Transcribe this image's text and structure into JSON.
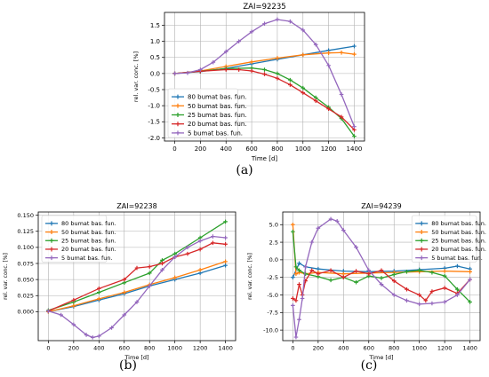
{
  "captions": {
    "a": "(a)",
    "b": "(b)",
    "c": "(c)"
  },
  "chart_data": [
    {
      "id": "a",
      "type": "line",
      "title": "ZAI=92235",
      "xlabel": "Time [d]",
      "ylabel": "rel. var. conc. [%]",
      "xlim": [
        -80,
        1480
      ],
      "ylim": [
        -2.1,
        1.9
      ],
      "xticks": [
        "0",
        "200",
        "400",
        "600",
        "800",
        "1000",
        "1200",
        "1400"
      ],
      "yticks": [
        "-2.0",
        "-1.5",
        "-1.0",
        "-0.5",
        "0.0",
        "0.5",
        "1.0",
        "1.5"
      ],
      "grid": true,
      "legend_position": "lower-left",
      "series": [
        {
          "name": "80 bumat bas. fun.",
          "color": "#1f77b4",
          "marker": "plus",
          "points": [
            [
              0,
              0
            ],
            [
              200,
              0.06
            ],
            [
              400,
              0.16
            ],
            [
              600,
              0.3
            ],
            [
              800,
              0.44
            ],
            [
              1000,
              0.58
            ],
            [
              1200,
              0.72
            ],
            [
              1400,
              0.85
            ]
          ]
        },
        {
          "name": "50 bumat bas. fun.",
          "color": "#ff7f0e",
          "marker": "plus",
          "points": [
            [
              0,
              0
            ],
            [
              200,
              0.08
            ],
            [
              400,
              0.22
            ],
            [
              600,
              0.36
            ],
            [
              800,
              0.48
            ],
            [
              1000,
              0.58
            ],
            [
              1200,
              0.64
            ],
            [
              1300,
              0.65
            ],
            [
              1400,
              0.6
            ]
          ]
        },
        {
          "name": "25 bumat bas. fun.",
          "color": "#2ca02c",
          "marker": "plus",
          "points": [
            [
              0,
              0
            ],
            [
              200,
              0.07
            ],
            [
              400,
              0.15
            ],
            [
              600,
              0.17
            ],
            [
              700,
              0.12
            ],
            [
              800,
              0.0
            ],
            [
              900,
              -0.2
            ],
            [
              1000,
              -0.45
            ],
            [
              1100,
              -0.75
            ],
            [
              1200,
              -1.05
            ],
            [
              1300,
              -1.4
            ],
            [
              1400,
              -1.95
            ]
          ]
        },
        {
          "name": "20 bumat bas. fun.",
          "color": "#d62728",
          "marker": "plus",
          "points": [
            [
              0,
              0
            ],
            [
              200,
              0.07
            ],
            [
              400,
              0.12
            ],
            [
              500,
              0.12
            ],
            [
              600,
              0.08
            ],
            [
              700,
              -0.02
            ],
            [
              800,
              -0.15
            ],
            [
              900,
              -0.35
            ],
            [
              1000,
              -0.6
            ],
            [
              1100,
              -0.85
            ],
            [
              1200,
              -1.1
            ],
            [
              1300,
              -1.35
            ],
            [
              1400,
              -1.75
            ]
          ]
        },
        {
          "name": "5 bumat bas. fun.",
          "color": "#9467bd",
          "marker": "plus",
          "points": [
            [
              0,
              0
            ],
            [
              100,
              0.02
            ],
            [
              200,
              0.12
            ],
            [
              300,
              0.35
            ],
            [
              400,
              0.68
            ],
            [
              500,
              1.0
            ],
            [
              600,
              1.3
            ],
            [
              700,
              1.55
            ],
            [
              800,
              1.68
            ],
            [
              900,
              1.62
            ],
            [
              1000,
              1.35
            ],
            [
              1100,
              0.9
            ],
            [
              1200,
              0.25
            ],
            [
              1300,
              -0.65
            ],
            [
              1400,
              -1.65
            ]
          ]
        }
      ]
    },
    {
      "id": "b",
      "type": "line",
      "title": "ZAI=92238",
      "xlabel": "Time [d]",
      "ylabel": "rel. var. conc. [%]",
      "xlim": [
        -80,
        1480
      ],
      "ylim": [
        -0.045,
        0.155
      ],
      "xticks": [
        "0",
        "200",
        "400",
        "600",
        "800",
        "1000",
        "1200",
        "1400"
      ],
      "yticks": [
        "0.000",
        "0.025",
        "0.050",
        "0.075",
        "0.100",
        "0.125",
        "0.150"
      ],
      "grid": true,
      "legend_position": "upper-left",
      "series": [
        {
          "name": "80 bumat bas. fun.",
          "color": "#1f77b4",
          "marker": "plus",
          "points": [
            [
              0,
              0
            ],
            [
              200,
              0.008
            ],
            [
              400,
              0.018
            ],
            [
              600,
              0.028
            ],
            [
              800,
              0.04
            ],
            [
              1000,
              0.05
            ],
            [
              1200,
              0.06
            ],
            [
              1400,
              0.072
            ]
          ]
        },
        {
          "name": "50 bumat bas. fun.",
          "color": "#ff7f0e",
          "marker": "plus",
          "points": [
            [
              0,
              0
            ],
            [
              200,
              0.009
            ],
            [
              400,
              0.02
            ],
            [
              600,
              0.03
            ],
            [
              800,
              0.042
            ],
            [
              1000,
              0.053
            ],
            [
              1200,
              0.065
            ],
            [
              1400,
              0.078
            ]
          ]
        },
        {
          "name": "25 bumat bas. fun.",
          "color": "#2ca02c",
          "marker": "plus",
          "points": [
            [
              0,
              0.002
            ],
            [
              200,
              0.015
            ],
            [
              400,
              0.03
            ],
            [
              600,
              0.045
            ],
            [
              800,
              0.06
            ],
            [
              900,
              0.08
            ],
            [
              1000,
              0.09
            ],
            [
              1200,
              0.115
            ],
            [
              1400,
              0.14
            ]
          ]
        },
        {
          "name": "20 bumat bas. fun.",
          "color": "#d62728",
          "marker": "plus",
          "points": [
            [
              0,
              0.001
            ],
            [
              200,
              0.018
            ],
            [
              400,
              0.036
            ],
            [
              600,
              0.05
            ],
            [
              700,
              0.068
            ],
            [
              800,
              0.07
            ],
            [
              900,
              0.075
            ],
            [
              1000,
              0.085
            ],
            [
              1100,
              0.09
            ],
            [
              1200,
              0.097
            ],
            [
              1300,
              0.107
            ],
            [
              1400,
              0.105
            ]
          ]
        },
        {
          "name": "5 bumat bas. fun.",
          "color": "#9467bd",
          "marker": "plus",
          "points": [
            [
              0,
              0.001
            ],
            [
              100,
              -0.005
            ],
            [
              200,
              -0.02
            ],
            [
              300,
              -0.036
            ],
            [
              350,
              -0.04
            ],
            [
              400,
              -0.038
            ],
            [
              500,
              -0.025
            ],
            [
              600,
              -0.005
            ],
            [
              700,
              0.015
            ],
            [
              800,
              0.04
            ],
            [
              900,
              0.065
            ],
            [
              1000,
              0.085
            ],
            [
              1100,
              0.1
            ],
            [
              1200,
              0.11
            ],
            [
              1300,
              0.117
            ],
            [
              1400,
              0.115
            ]
          ]
        }
      ]
    },
    {
      "id": "c",
      "type": "line",
      "title": "ZAI=94239",
      "xlabel": "Time [d]",
      "ylabel": "rel. var. conc. [%]",
      "xlim": [
        -80,
        1480
      ],
      "ylim": [
        -11.5,
        6.8
      ],
      "xticks": [
        "0",
        "200",
        "400",
        "600",
        "800",
        "1000",
        "1200",
        "1400"
      ],
      "yticks": [
        "-10.0",
        "-7.5",
        "-5.0",
        "-2.5",
        "0.0",
        "2.5",
        "5.0"
      ],
      "grid": true,
      "legend_position": "upper-right",
      "series": [
        {
          "name": "80 bumat bas. fun.",
          "color": "#1f77b4",
          "marker": "plus",
          "points": [
            [
              0,
              -2.5
            ],
            [
              50,
              -0.5
            ],
            [
              100,
              -1.0
            ],
            [
              200,
              -1.3
            ],
            [
              400,
              -1.6
            ],
            [
              600,
              -1.7
            ],
            [
              800,
              -1.6
            ],
            [
              1000,
              -1.4
            ],
            [
              1200,
              -1.2
            ],
            [
              1300,
              -0.9
            ],
            [
              1400,
              -1.3
            ]
          ]
        },
        {
          "name": "50 bumat bas. fun.",
          "color": "#ff7f0e",
          "marker": "plus",
          "points": [
            [
              0,
              5.0
            ],
            [
              25,
              -2.0
            ],
            [
              50,
              -1.8
            ],
            [
              100,
              -2.0
            ],
            [
              200,
              -1.8
            ],
            [
              400,
              -2.0
            ],
            [
              600,
              -1.9
            ],
            [
              800,
              -1.8
            ],
            [
              1000,
              -1.7
            ],
            [
              1200,
              -1.6
            ],
            [
              1400,
              -1.7
            ]
          ]
        },
        {
          "name": "25 bumat bas. fun.",
          "color": "#2ca02c",
          "marker": "plus",
          "points": [
            [
              0,
              4.0
            ],
            [
              25,
              -1.0
            ],
            [
              50,
              -1.5
            ],
            [
              100,
              -2.0
            ],
            [
              200,
              -2.4
            ],
            [
              300,
              -2.9
            ],
            [
              400,
              -2.5
            ],
            [
              500,
              -3.2
            ],
            [
              600,
              -2.3
            ],
            [
              700,
              -2.6
            ],
            [
              800,
              -2.1
            ],
            [
              900,
              -1.7
            ],
            [
              1000,
              -1.5
            ],
            [
              1100,
              -1.8
            ],
            [
              1200,
              -2.3
            ],
            [
              1300,
              -4.2
            ],
            [
              1400,
              -6.0
            ]
          ]
        },
        {
          "name": "20 bumat bas. fun.",
          "color": "#d62728",
          "marker": "plus",
          "points": [
            [
              0,
              -5.5
            ],
            [
              25,
              -5.8
            ],
            [
              50,
              -3.5
            ],
            [
              75,
              -5.0
            ],
            [
              100,
              -3.0
            ],
            [
              150,
              -1.5
            ],
            [
              200,
              -2.0
            ],
            [
              300,
              -1.5
            ],
            [
              400,
              -2.5
            ],
            [
              500,
              -1.6
            ],
            [
              600,
              -2.0
            ],
            [
              700,
              -1.5
            ],
            [
              800,
              -3.0
            ],
            [
              900,
              -4.2
            ],
            [
              1000,
              -5.0
            ],
            [
              1050,
              -5.8
            ],
            [
              1100,
              -4.5
            ],
            [
              1200,
              -4.0
            ],
            [
              1300,
              -4.8
            ],
            [
              1400,
              -2.8
            ]
          ]
        },
        {
          "name": "5 bumat bas. fun.",
          "color": "#9467bd",
          "marker": "plus",
          "points": [
            [
              0,
              -6.5
            ],
            [
              25,
              -11.0
            ],
            [
              50,
              -8.5
            ],
            [
              75,
              -5.5
            ],
            [
              100,
              -1.0
            ],
            [
              150,
              2.5
            ],
            [
              200,
              4.5
            ],
            [
              300,
              5.8
            ],
            [
              350,
              5.5
            ],
            [
              400,
              4.2
            ],
            [
              500,
              1.8
            ],
            [
              600,
              -1.5
            ],
            [
              700,
              -3.5
            ],
            [
              800,
              -5.0
            ],
            [
              900,
              -5.8
            ],
            [
              1000,
              -6.3
            ],
            [
              1100,
              -6.2
            ],
            [
              1200,
              -6.0
            ],
            [
              1300,
              -5.0
            ],
            [
              1400,
              -2.8
            ]
          ]
        }
      ]
    }
  ]
}
